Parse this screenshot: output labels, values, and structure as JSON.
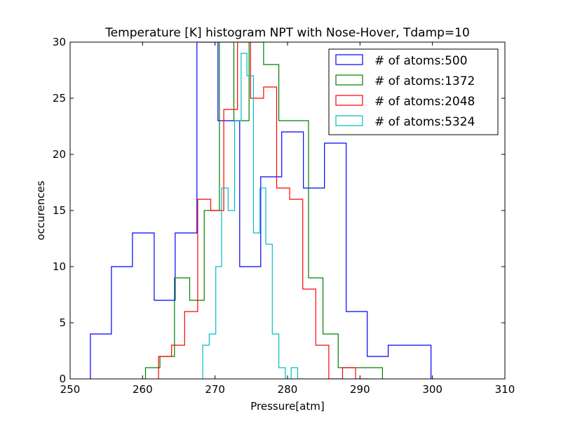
{
  "chart_data": {
    "type": "histogram",
    "title": "Temperature [K] histogram NPT with Nose-Hover, Tdamp=10",
    "xlabel": "Pressure[atm]",
    "ylabel": "occurences",
    "xlim": [
      250,
      310
    ],
    "ylim": [
      0,
      30
    ],
    "xticks": [
      250,
      260,
      270,
      280,
      290,
      300,
      310
    ],
    "yticks": [
      0,
      5,
      10,
      15,
      20,
      25,
      30
    ],
    "grid": false,
    "legend_position": "top-right",
    "series": [
      {
        "name": "# of atoms:500",
        "color": "#0000ff",
        "bin_edges": [
          252.8,
          255.7,
          258.6,
          261.6,
          264.5,
          267.5,
          270.4,
          273.4,
          276.3,
          279.2,
          282.2,
          285.1,
          288.1,
          291.0,
          293.9,
          296.9,
          299.8
        ],
        "counts": [
          4,
          10,
          13,
          7,
          13,
          30,
          23,
          10,
          18,
          22,
          17,
          21,
          6,
          2,
          3,
          3
        ]
      },
      {
        "name": "# of atoms:1372",
        "color": "#008000",
        "bin_edges": [
          260.4,
          262.4,
          264.4,
          266.5,
          268.5,
          270.6,
          272.6,
          274.7,
          276.7,
          278.8,
          280.8,
          282.9,
          284.9,
          287.0,
          289.0,
          291.1,
          293.1
        ],
        "counts": [
          1,
          2,
          9,
          7,
          15,
          30,
          23,
          30,
          28,
          23,
          23,
          9,
          4,
          1,
          1,
          1
        ]
      },
      {
        "name": "# of atoms:2048",
        "color": "#ff0000",
        "bin_edges": [
          262.2,
          264.0,
          265.8,
          267.6,
          269.4,
          271.2,
          273.1,
          274.9,
          276.7,
          278.5,
          280.3,
          282.1,
          283.9,
          285.7,
          287.6,
          289.4,
          291.2
        ],
        "counts": [
          2,
          3,
          6,
          16,
          15,
          24,
          30,
          25,
          26,
          17,
          16,
          8,
          3,
          0,
          1,
          0
        ]
      },
      {
        "name": "# of atoms:5324",
        "color": "#00bfbf",
        "bin_edges": [
          268.3,
          269.2,
          270.1,
          270.9,
          271.8,
          272.7,
          273.6,
          274.4,
          275.3,
          276.2,
          277.0,
          277.9,
          278.8,
          279.7,
          280.5,
          281.4,
          282.3
        ],
        "counts": [
          3,
          4,
          10,
          17,
          15,
          23,
          29,
          27,
          13,
          17,
          12,
          4,
          1,
          0,
          1,
          0
        ]
      }
    ]
  }
}
